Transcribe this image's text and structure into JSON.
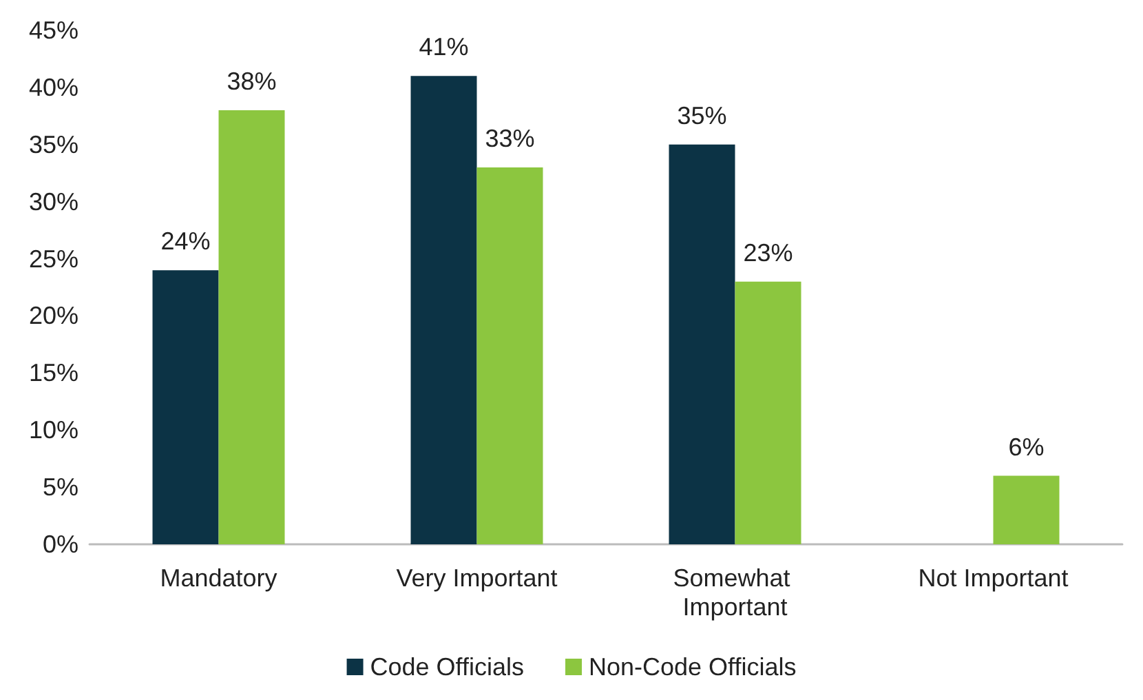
{
  "chart_data": {
    "type": "bar",
    "categories": [
      "Mandatory",
      "Very Important",
      "Somewhat Important",
      "Not Important"
    ],
    "series": [
      {
        "name": "Code Officials",
        "color": "#0c3345",
        "values": [
          24,
          41,
          35,
          null
        ],
        "value_labels": [
          "24%",
          "41%",
          "35%",
          null
        ]
      },
      {
        "name": "Non-Code Officials",
        "color": "#8cc63f",
        "values": [
          38,
          33,
          23,
          6
        ],
        "value_labels": [
          "38%",
          "33%",
          "23%",
          "6%"
        ]
      }
    ],
    "ylim": [
      0,
      45
    ],
    "yticks": [
      {
        "value": 0,
        "label": "0%"
      },
      {
        "value": 5,
        "label": "5%"
      },
      {
        "value": 10,
        "label": "10%"
      },
      {
        "value": 15,
        "label": "15%"
      },
      {
        "value": 20,
        "label": "20%"
      },
      {
        "value": 25,
        "label": "25%"
      },
      {
        "value": 30,
        "label": "30%"
      },
      {
        "value": 35,
        "label": "35%"
      },
      {
        "value": 40,
        "label": "40%"
      },
      {
        "value": 45,
        "label": "45%"
      }
    ],
    "grid": false,
    "legend": "bottom"
  }
}
